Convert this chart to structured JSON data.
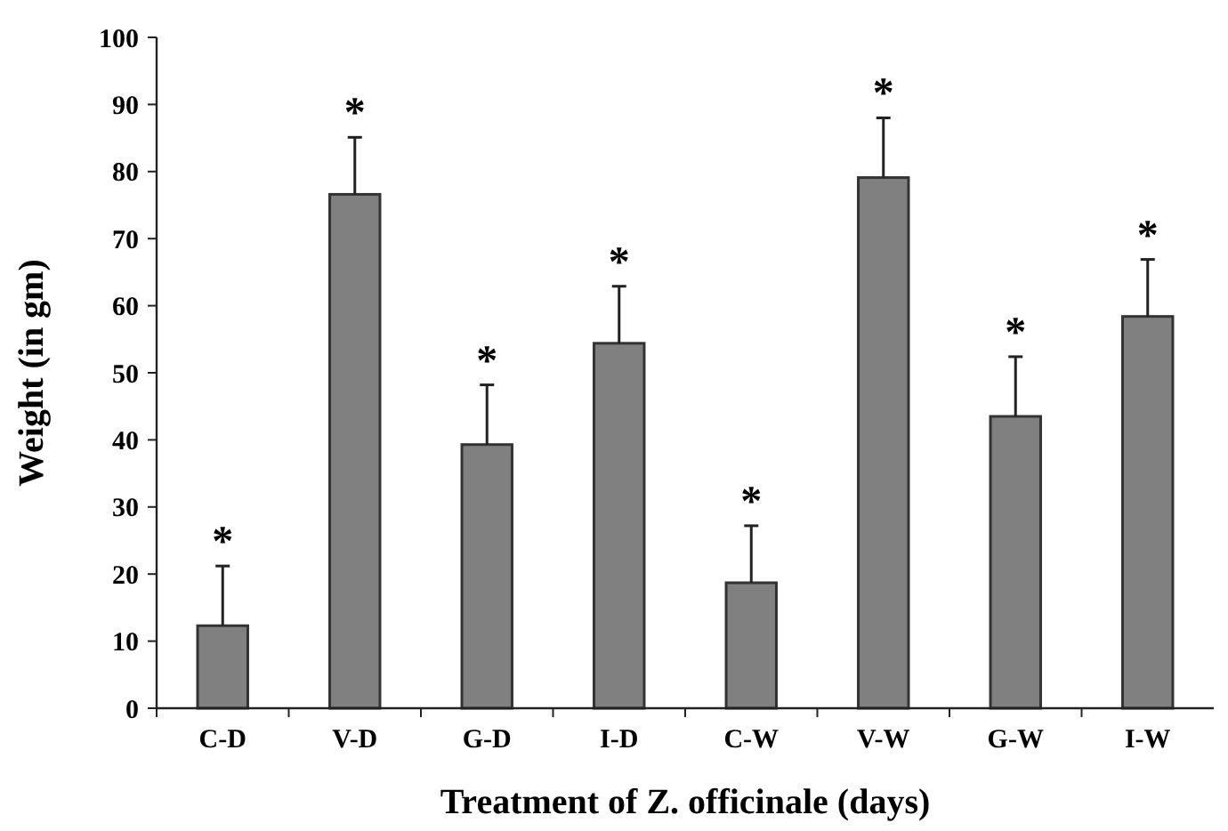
{
  "chart_data": {
    "type": "bar",
    "xlabel": "Treatment of Z. officinale (days)",
    "ylabel": "Weight (in gm)",
    "categories": [
      "C-D",
      "V-D",
      "G-D",
      "I-D",
      "C-W",
      "V-W",
      "G-W",
      "I-W"
    ],
    "values": [
      12.3,
      76.6,
      39.3,
      54.4,
      18.7,
      79.1,
      43.5,
      58.4
    ],
    "errors": [
      8.9,
      8.5,
      8.9,
      8.5,
      8.5,
      8.9,
      8.9,
      8.5
    ],
    "color": "#808080",
    "ylim": [
      0,
      100
    ],
    "yticks": [
      0,
      10,
      20,
      30,
      40,
      50,
      60,
      70,
      80,
      90,
      100
    ],
    "grid": false,
    "annotations": [
      {
        "text": "*",
        "x": "C-D",
        "y": 21.2
      },
      {
        "text": "*",
        "x": "V-D",
        "y": 85.1
      },
      {
        "text": "*",
        "x": "G-D",
        "y": 48.2
      },
      {
        "text": "*",
        "x": "I-D",
        "y": 62.9
      },
      {
        "text": "*",
        "x": "C-W",
        "y": 27.2
      },
      {
        "text": "*",
        "x": "V-W",
        "y": 88.0
      },
      {
        "text": "*",
        "x": "G-W",
        "y": 52.4
      },
      {
        "text": "*",
        "x": "I-W",
        "y": 66.9
      }
    ]
  }
}
